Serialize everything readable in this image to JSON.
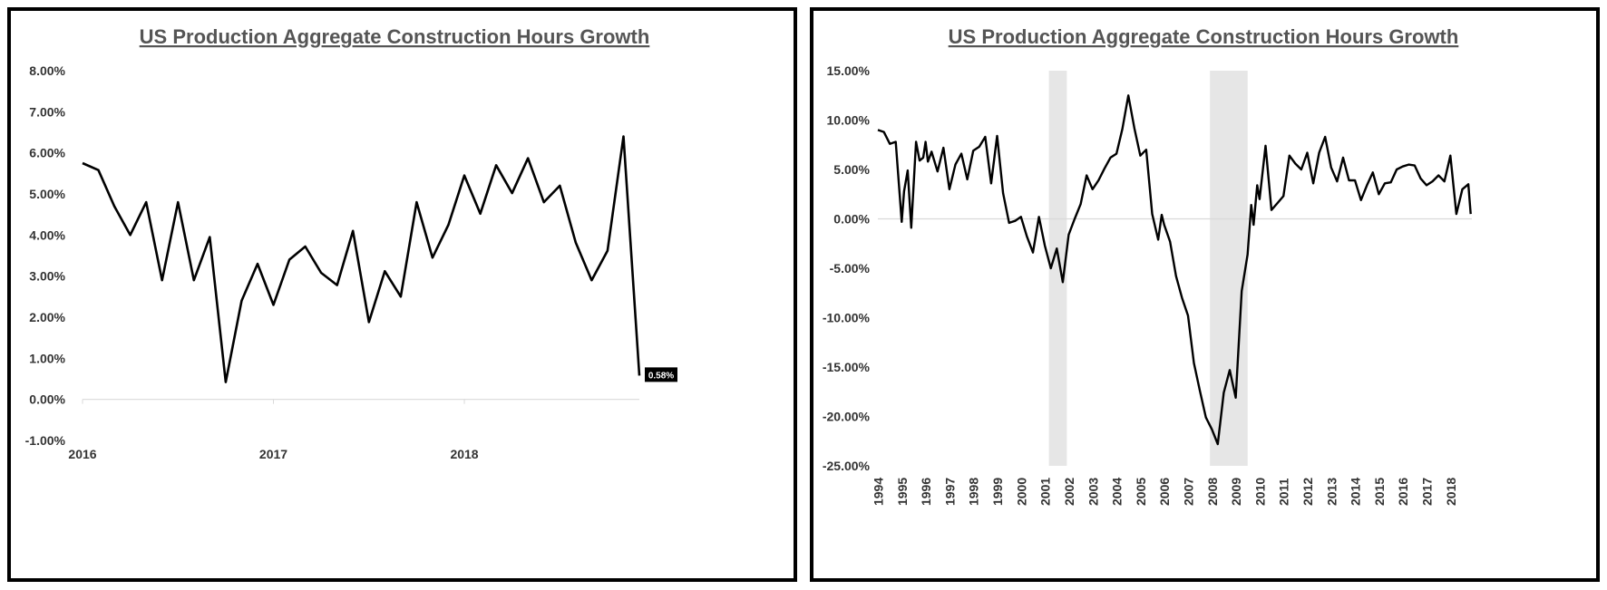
{
  "chart_data": [
    {
      "type": "line",
      "title": "US Production Aggregate Construction Hours Growth",
      "xlabel": "",
      "ylabel": "",
      "ylim": [
        -1.0,
        8.0
      ],
      "yticks": [
        "8.00%",
        "7.00%",
        "6.00%",
        "5.00%",
        "4.00%",
        "3.00%",
        "2.00%",
        "1.00%",
        "0.00%",
        "-1.00%"
      ],
      "x_tick_labels": [
        "2016",
        "2017",
        "2018"
      ],
      "x_range_months": [
        0,
        35
      ],
      "x_tick_months": [
        0,
        12,
        24
      ],
      "series": [
        {
          "name": "Growth",
          "color": "#000000",
          "values": [
            5.75,
            5.58,
            4.7,
            4.0,
            4.8,
            2.9,
            4.8,
            2.9,
            3.95,
            0.42,
            2.4,
            3.3,
            2.3,
            3.4,
            3.72,
            3.08,
            2.78,
            4.1,
            1.88,
            3.12,
            2.5,
            4.8,
            3.45,
            4.25,
            5.45,
            4.52,
            5.7,
            5.02,
            5.87,
            4.8,
            5.2,
            3.82,
            2.9,
            3.62,
            6.4,
            0.58
          ]
        }
      ],
      "last_value_label": "0.58%",
      "gridlines": false
    },
    {
      "type": "line",
      "title": "US Production Aggregate Construction Hours Growth",
      "xlabel": "",
      "ylabel": "",
      "ylim": [
        -25.0,
        15.0
      ],
      "yticks": [
        "15.00%",
        "10.00%",
        "5.00%",
        "0.00%",
        "-5.00%",
        "-10.00%",
        "-15.00%",
        "-20.00%",
        "-25.00%"
      ],
      "x_tick_labels": [
        "1994",
        "1995",
        "1996",
        "1997",
        "1998",
        "1999",
        "2000",
        "2001",
        "2002",
        "2003",
        "2004",
        "2005",
        "2006",
        "2007",
        "2008",
        "2009",
        "2010",
        "2011",
        "2012",
        "2013",
        "2014",
        "2015",
        "2016",
        "2017",
        "2018"
      ],
      "recessions": [
        [
          2001.17,
          2001.92
        ],
        [
          2007.92,
          2009.5
        ]
      ],
      "series": [
        {
          "name": "Growth",
          "color": "#000000",
          "x": [
            1994.0,
            1994.25,
            1994.5,
            1994.75,
            1995.0,
            1995.1,
            1995.25,
            1995.4,
            1995.6,
            1995.75,
            1995.9,
            1996.0,
            1996.1,
            1996.25,
            1996.5,
            1996.75,
            1997.0,
            1997.25,
            1997.5,
            1997.75,
            1998.0,
            1998.25,
            1998.5,
            1998.75,
            1999.0,
            1999.25,
            1999.5,
            1999.75,
            2000.0,
            2000.25,
            2000.5,
            2000.75,
            2001.0,
            2001.25,
            2001.5,
            2001.75,
            2002.0,
            2002.25,
            2002.5,
            2002.75,
            2003.0,
            2003.25,
            2003.5,
            2003.75,
            2004.0,
            2004.25,
            2004.5,
            2004.75,
            2005.0,
            2005.25,
            2005.5,
            2005.75,
            2005.9,
            2006.0,
            2006.25,
            2006.5,
            2006.75,
            2007.0,
            2007.25,
            2007.5,
            2007.75,
            2008.0,
            2008.25,
            2008.5,
            2008.75,
            2009.0,
            2009.25,
            2009.5,
            2009.65,
            2009.75,
            2009.9,
            2010.0,
            2010.25,
            2010.5,
            2010.75,
            2011.0,
            2011.25,
            2011.5,
            2011.75,
            2012.0,
            2012.25,
            2012.5,
            2012.75,
            2013.0,
            2013.25,
            2013.5,
            2013.75,
            2014.0,
            2014.25,
            2014.5,
            2014.75,
            2015.0,
            2015.25,
            2015.5,
            2015.75,
            2016.0,
            2016.25,
            2016.5,
            2016.75,
            2017.0,
            2017.25,
            2017.5,
            2017.75,
            2018.0,
            2018.25,
            2018.5,
            2018.75,
            2018.85
          ],
          "values": [
            9.0,
            8.8,
            7.6,
            7.8,
            -0.3,
            2.8,
            4.9,
            -0.9,
            7.8,
            5.9,
            6.2,
            7.8,
            5.8,
            6.8,
            4.8,
            7.2,
            3.0,
            5.5,
            6.6,
            4.0,
            6.9,
            7.3,
            8.3,
            3.6,
            8.4,
            2.6,
            -0.4,
            -0.2,
            0.2,
            -1.8,
            -3.4,
            0.2,
            -2.7,
            -5.0,
            -3.0,
            -6.4,
            -1.6,
            0.0,
            1.5,
            4.4,
            3.0,
            3.9,
            5.1,
            6.2,
            6.6,
            9.1,
            12.5,
            9.2,
            6.4,
            7.0,
            0.5,
            -2.1,
            0.4,
            -0.6,
            -2.3,
            -5.8,
            -8.0,
            -9.8,
            -14.6,
            -17.4,
            -20.1,
            -21.3,
            -22.8,
            -17.6,
            -15.3,
            -18.1,
            -7.3,
            -3.6,
            1.4,
            -0.6,
            3.4,
            2.0,
            7.4,
            0.9,
            1.6,
            2.3,
            6.4,
            5.6,
            5.0,
            6.7,
            3.6,
            6.7,
            8.3,
            5.2,
            3.8,
            6.2,
            3.9,
            3.9,
            1.9,
            3.4,
            4.7,
            2.5,
            3.6,
            3.7,
            5.0,
            5.3,
            5.5,
            5.4,
            4.1,
            3.4,
            3.8,
            4.4,
            3.8,
            6.4,
            0.5,
            3.0,
            3.5,
            0.5
          ]
        }
      ],
      "gridlines": false
    }
  ]
}
